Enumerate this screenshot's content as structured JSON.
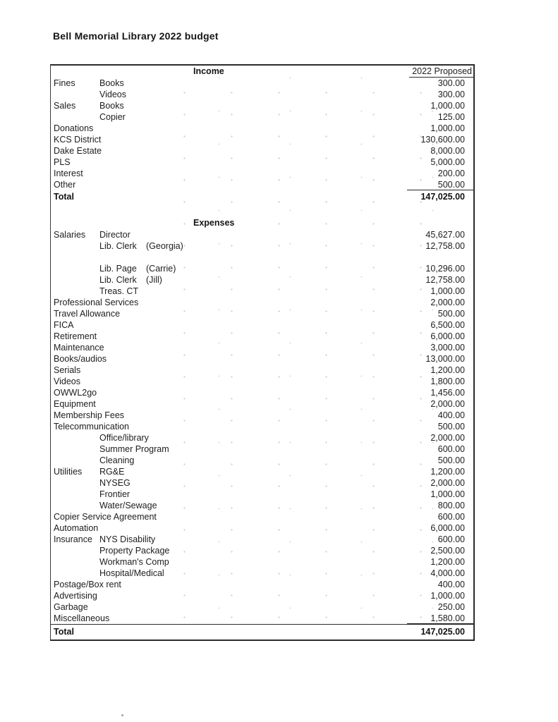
{
  "page_title": "Bell Memorial Library 2022 budget",
  "colors": {
    "paper": "#ffffff",
    "ink": "#1d1d1d",
    "border": "#2b2b2b"
  },
  "table": {
    "income_label": "Income",
    "column_header": "2022 Proposed",
    "expenses_label": "Expenses",
    "income_rows": [
      {
        "c1": "Fines",
        "c2": "Books",
        "amount": "300.00"
      },
      {
        "c1": "",
        "c2": "Videos",
        "amount": "300.00"
      },
      {
        "c1": "Sales",
        "c2": "Books",
        "amount": "1,000.00"
      },
      {
        "c1": "",
        "c2": "Copier",
        "amount": "125.00"
      },
      {
        "c1": "Donations",
        "c2": "",
        "amount": "1,000.00"
      },
      {
        "c1": "KCS District",
        "c2": "",
        "amount": "130,600.00"
      },
      {
        "c1": "Dake Estate",
        "c2": "",
        "amount": "8,000.00"
      },
      {
        "c1": "PLS",
        "c2": "",
        "amount": "5,000.00"
      },
      {
        "c1": "Interest",
        "c2": "",
        "amount": "200.00"
      },
      {
        "c1": "Other",
        "c2": "",
        "amount": "500.00",
        "underline_amount": true
      }
    ],
    "income_total": {
      "label": "Total",
      "amount": "147,025.00"
    },
    "expense_rows": [
      {
        "c1": "Salaries",
        "c2": "Director",
        "amount": "45,627.00"
      },
      {
        "c1": "",
        "c2": "Lib. Clerk",
        "c3": "(Georgia)",
        "amount": "12,758.00"
      },
      {
        "blank": true
      },
      {
        "c1": "",
        "c2": "Lib. Page",
        "c3": "(Carrie)",
        "amount": "10,296.00"
      },
      {
        "c1": "",
        "c2": "Lib. Clerk",
        "c3": "(Jill)",
        "amount": "12,758.00"
      },
      {
        "c1": "",
        "c2": "Treas. CT",
        "amount": "1,000.00"
      },
      {
        "c1": "Professional Services",
        "amount": "2,000.00"
      },
      {
        "c1": "Travel Allowance",
        "amount": "500.00"
      },
      {
        "c1": "FICA",
        "amount": "6,500.00"
      },
      {
        "c1": "Retirement",
        "amount": "6,000.00"
      },
      {
        "c1": "Maintenance",
        "amount": "3,000.00"
      },
      {
        "c1": "Books/audios",
        "amount": "13,000.00"
      },
      {
        "c1": "Serials",
        "amount": "1,200.00"
      },
      {
        "c1": "Videos",
        "amount": "1,800.00"
      },
      {
        "c1": "OWWL2go",
        "amount": "1,456.00"
      },
      {
        "c1": "Equipment",
        "amount": "2,000.00"
      },
      {
        "c1": "Membership Fees",
        "amount": "400.00"
      },
      {
        "c1": "Telecommunication",
        "amount": "500.00"
      },
      {
        "c1": "",
        "c2": "Office/library",
        "amount": "2,000.00"
      },
      {
        "c1": "",
        "c2": "Summer Program",
        "amount": "600.00"
      },
      {
        "c1": "",
        "c2": "Cleaning",
        "amount": "500.00"
      },
      {
        "c1": "Utilities",
        "c2": "RG&E",
        "amount": "1,200.00"
      },
      {
        "c1": "",
        "c2": "NYSEG",
        "amount": "2,000.00"
      },
      {
        "c1": "",
        "c2": "Frontier",
        "amount": "1,000.00"
      },
      {
        "c1": "",
        "c2": "Water/Sewage",
        "amount": "800.00"
      },
      {
        "c1": "Copier Service Agreement",
        "amount": "600.00"
      },
      {
        "c1": "Automation",
        "amount": "6,000.00"
      },
      {
        "c1": "Insurance",
        "c2": "NYS Disability",
        "amount": "600.00"
      },
      {
        "c1": "",
        "c2": "Property Package",
        "amount": "2,500.00"
      },
      {
        "c1": "",
        "c2": "Workman's Comp",
        "amount": "1,200.00"
      },
      {
        "c1": "",
        "c2": "Hospital/Medical",
        "amount": "4,000.00"
      },
      {
        "c1": "Postage/Box rent",
        "amount": "400.00"
      },
      {
        "c1": "Advertising",
        "amount": "1,000.00"
      },
      {
        "c1": "Garbage",
        "amount": "250.00"
      },
      {
        "c1": "Miscellaneous",
        "amount": "1,580.00",
        "underline_amount": true
      }
    ],
    "expense_total": {
      "label": "Total",
      "amount": "147,025.00"
    }
  }
}
